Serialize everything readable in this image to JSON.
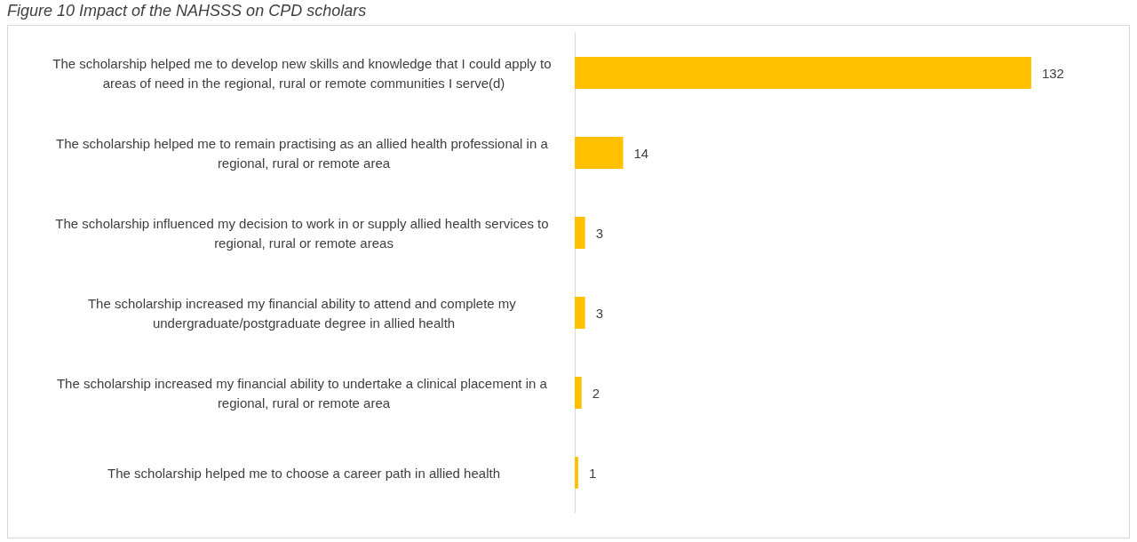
{
  "chart_data": {
    "type": "bar",
    "orientation": "horizontal",
    "title": "Figure 10 Impact of the NAHSSS on CPD scholars",
    "categories": [
      "The scholarship helped me to develop new skills and knowledge that I could apply to areas of need in the regional, rural or remote communities I serve(d)",
      "The scholarship helped me to remain practising as an allied health professional in a regional, rural or remote area",
      "The scholarship influenced my decision to work in or supply allied health services to regional, rural or remote areas",
      "The scholarship increased my financial ability to attend and complete my undergraduate/postgraduate degree in allied health",
      "The scholarship increased my financial ability to undertake a clinical placement in a regional, rural or remote area",
      "The scholarship helped me to choose a career path in allied health"
    ],
    "values": [
      132,
      14,
      3,
      3,
      2,
      1
    ],
    "color": "#ffc000",
    "data_labels": true
  }
}
